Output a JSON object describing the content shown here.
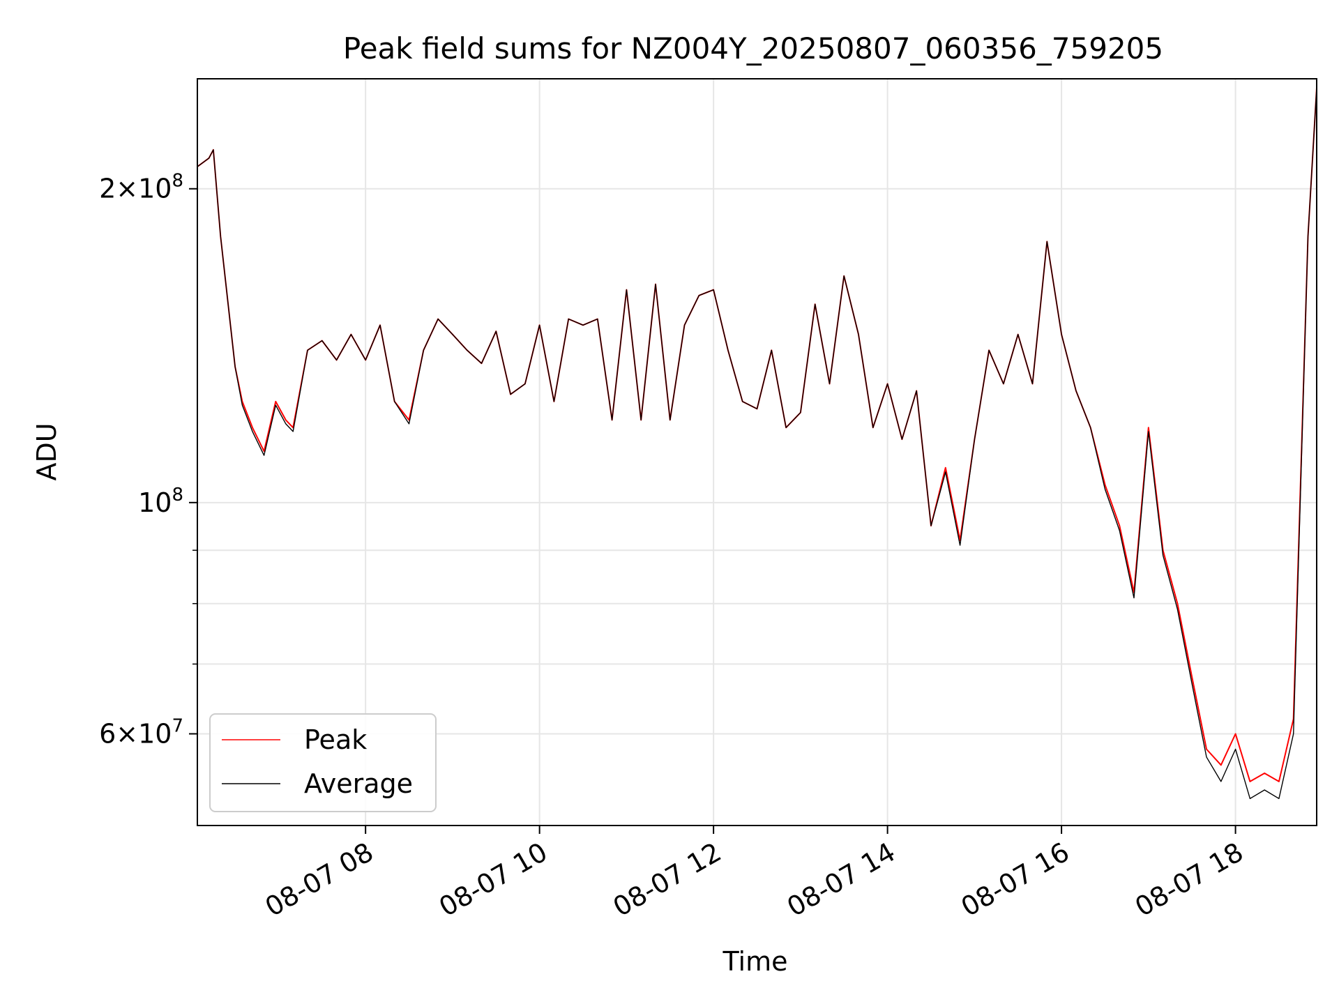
{
  "chart_data": {
    "type": "line",
    "title": "Peak field sums for NZ004Y_20250807_060356_759205",
    "xlabel": "Time",
    "ylabel": "ADU",
    "x_type": "datetime",
    "xlim": [
      "2025-08-07 06:04",
      "2025-08-07 18:56"
    ],
    "ylim": [
      49000000,
      255000000
    ],
    "y_scale": "log",
    "grid": true,
    "legend_position": "lower-left",
    "x_ticks": [
      {
        "label": "08-07 08",
        "value": "2025-08-07 08:00"
      },
      {
        "label": "08-07 10",
        "value": "2025-08-07 10:00"
      },
      {
        "label": "08-07 12",
        "value": "2025-08-07 12:00"
      },
      {
        "label": "08-07 14",
        "value": "2025-08-07 14:00"
      },
      {
        "label": "08-07 16",
        "value": "2025-08-07 16:00"
      },
      {
        "label": "08-07 18",
        "value": "2025-08-07 18:00"
      }
    ],
    "y_ticks": [
      {
        "mantissa": "2",
        "exponent": "8",
        "value": 200000000
      },
      {
        "mantissa": "",
        "exponent": "8",
        "value": 100000000
      },
      {
        "mantissa": "6",
        "exponent": "7",
        "value": 60000000
      }
    ],
    "y_minor_ticks": [
      70000000,
      80000000,
      90000000
    ],
    "series": [
      {
        "name": "Peak",
        "color": "#ff0000",
        "x": [
          "2025-08-07 06:04",
          "2025-08-07 06:12",
          "2025-08-07 06:15",
          "2025-08-07 06:20",
          "2025-08-07 06:30",
          "2025-08-07 06:35",
          "2025-08-07 06:42",
          "2025-08-07 06:50",
          "2025-08-07 06:58",
          "2025-08-07 07:05",
          "2025-08-07 07:10",
          "2025-08-07 07:20",
          "2025-08-07 07:30",
          "2025-08-07 07:40",
          "2025-08-07 07:50",
          "2025-08-07 08:00",
          "2025-08-07 08:10",
          "2025-08-07 08:20",
          "2025-08-07 08:30",
          "2025-08-07 08:40",
          "2025-08-07 08:50",
          "2025-08-07 09:00",
          "2025-08-07 09:10",
          "2025-08-07 09:20",
          "2025-08-07 09:30",
          "2025-08-07 09:40",
          "2025-08-07 09:50",
          "2025-08-07 10:00",
          "2025-08-07 10:10",
          "2025-08-07 10:20",
          "2025-08-07 10:30",
          "2025-08-07 10:40",
          "2025-08-07 10:50",
          "2025-08-07 11:00",
          "2025-08-07 11:10",
          "2025-08-07 11:20",
          "2025-08-07 11:30",
          "2025-08-07 11:40",
          "2025-08-07 11:50",
          "2025-08-07 12:00",
          "2025-08-07 12:10",
          "2025-08-07 12:20",
          "2025-08-07 12:30",
          "2025-08-07 12:40",
          "2025-08-07 12:50",
          "2025-08-07 13:00",
          "2025-08-07 13:10",
          "2025-08-07 13:20",
          "2025-08-07 13:30",
          "2025-08-07 13:40",
          "2025-08-07 13:50",
          "2025-08-07 14:00",
          "2025-08-07 14:10",
          "2025-08-07 14:20",
          "2025-08-07 14:30",
          "2025-08-07 14:40",
          "2025-08-07 14:50",
          "2025-08-07 15:00",
          "2025-08-07 15:10",
          "2025-08-07 15:20",
          "2025-08-07 15:30",
          "2025-08-07 15:40",
          "2025-08-07 15:50",
          "2025-08-07 16:00",
          "2025-08-07 16:10",
          "2025-08-07 16:20",
          "2025-08-07 16:30",
          "2025-08-07 16:40",
          "2025-08-07 16:50",
          "2025-08-07 17:00",
          "2025-08-07 17:10",
          "2025-08-07 17:20",
          "2025-08-07 17:30",
          "2025-08-07 17:40",
          "2025-08-07 17:50",
          "2025-08-07 18:00",
          "2025-08-07 18:10",
          "2025-08-07 18:20",
          "2025-08-07 18:30",
          "2025-08-07 18:40",
          "2025-08-07 18:50",
          "2025-08-07 18:56"
        ],
        "values": [
          210000000,
          214000000,
          218000000,
          180000000,
          135000000,
          125000000,
          118000000,
          112000000,
          125000000,
          120000000,
          118000000,
          140000000,
          143000000,
          137000000,
          145000000,
          137000000,
          148000000,
          125000000,
          120000000,
          140000000,
          150000000,
          145000000,
          140000000,
          136000000,
          146000000,
          127000000,
          130000000,
          148000000,
          125000000,
          150000000,
          148000000,
          150000000,
          120000000,
          160000000,
          120000000,
          162000000,
          120000000,
          148000000,
          158000000,
          160000000,
          140000000,
          125000000,
          123000000,
          140000000,
          118000000,
          122000000,
          155000000,
          130000000,
          165000000,
          145000000,
          118000000,
          130000000,
          115000000,
          128000000,
          95000000,
          108000000,
          92000000,
          115000000,
          140000000,
          130000000,
          145000000,
          130000000,
          178000000,
          145000000,
          128000000,
          118000000,
          104000000,
          95000000,
          82000000,
          118000000,
          90000000,
          80000000,
          68000000,
          58000000,
          56000000,
          60000000,
          54000000,
          55000000,
          54000000,
          62000000,
          180000000,
          250000000
        ]
      },
      {
        "name": "Average",
        "color": "#000000",
        "x": [
          "2025-08-07 06:04",
          "2025-08-07 06:12",
          "2025-08-07 06:15",
          "2025-08-07 06:20",
          "2025-08-07 06:30",
          "2025-08-07 06:35",
          "2025-08-07 06:42",
          "2025-08-07 06:50",
          "2025-08-07 06:58",
          "2025-08-07 07:05",
          "2025-08-07 07:10",
          "2025-08-07 07:20",
          "2025-08-07 07:30",
          "2025-08-07 07:40",
          "2025-08-07 07:50",
          "2025-08-07 08:00",
          "2025-08-07 08:10",
          "2025-08-07 08:20",
          "2025-08-07 08:30",
          "2025-08-07 08:40",
          "2025-08-07 08:50",
          "2025-08-07 09:00",
          "2025-08-07 09:10",
          "2025-08-07 09:20",
          "2025-08-07 09:30",
          "2025-08-07 09:40",
          "2025-08-07 09:50",
          "2025-08-07 10:00",
          "2025-08-07 10:10",
          "2025-08-07 10:20",
          "2025-08-07 10:30",
          "2025-08-07 10:40",
          "2025-08-07 10:50",
          "2025-08-07 11:00",
          "2025-08-07 11:10",
          "2025-08-07 11:20",
          "2025-08-07 11:30",
          "2025-08-07 11:40",
          "2025-08-07 11:50",
          "2025-08-07 12:00",
          "2025-08-07 12:10",
          "2025-08-07 12:20",
          "2025-08-07 12:30",
          "2025-08-07 12:40",
          "2025-08-07 12:50",
          "2025-08-07 13:00",
          "2025-08-07 13:10",
          "2025-08-07 13:20",
          "2025-08-07 13:30",
          "2025-08-07 13:40",
          "2025-08-07 13:50",
          "2025-08-07 14:00",
          "2025-08-07 14:10",
          "2025-08-07 14:20",
          "2025-08-07 14:30",
          "2025-08-07 14:40",
          "2025-08-07 14:50",
          "2025-08-07 15:00",
          "2025-08-07 15:10",
          "2025-08-07 15:20",
          "2025-08-07 15:30",
          "2025-08-07 15:40",
          "2025-08-07 15:50",
          "2025-08-07 16:00",
          "2025-08-07 16:10",
          "2025-08-07 16:20",
          "2025-08-07 16:30",
          "2025-08-07 16:40",
          "2025-08-07 16:50",
          "2025-08-07 17:00",
          "2025-08-07 17:10",
          "2025-08-07 17:20",
          "2025-08-07 17:30",
          "2025-08-07 17:40",
          "2025-08-07 17:50",
          "2025-08-07 18:00",
          "2025-08-07 18:10",
          "2025-08-07 18:20",
          "2025-08-07 18:30",
          "2025-08-07 18:40",
          "2025-08-07 18:50",
          "2025-08-07 18:56"
        ],
        "values": [
          210000000,
          214000000,
          218000000,
          180000000,
          135000000,
          124000000,
          117000000,
          111000000,
          124000000,
          119000000,
          117000000,
          140000000,
          143000000,
          137000000,
          145000000,
          137000000,
          148000000,
          125000000,
          119000000,
          140000000,
          150000000,
          145000000,
          140000000,
          136000000,
          146000000,
          127000000,
          130000000,
          148000000,
          125000000,
          150000000,
          148000000,
          150000000,
          120000000,
          160000000,
          120000000,
          162000000,
          120000000,
          148000000,
          158000000,
          160000000,
          140000000,
          125000000,
          123000000,
          140000000,
          118000000,
          122000000,
          155000000,
          130000000,
          165000000,
          145000000,
          118000000,
          130000000,
          115000000,
          128000000,
          95000000,
          107000000,
          91000000,
          115000000,
          140000000,
          130000000,
          145000000,
          130000000,
          178000000,
          145000000,
          128000000,
          118000000,
          103000000,
          94000000,
          81000000,
          117000000,
          89000000,
          79000000,
          67000000,
          57000000,
          54000000,
          58000000,
          52000000,
          53000000,
          52000000,
          60000000,
          180000000,
          250000000
        ]
      }
    ]
  }
}
